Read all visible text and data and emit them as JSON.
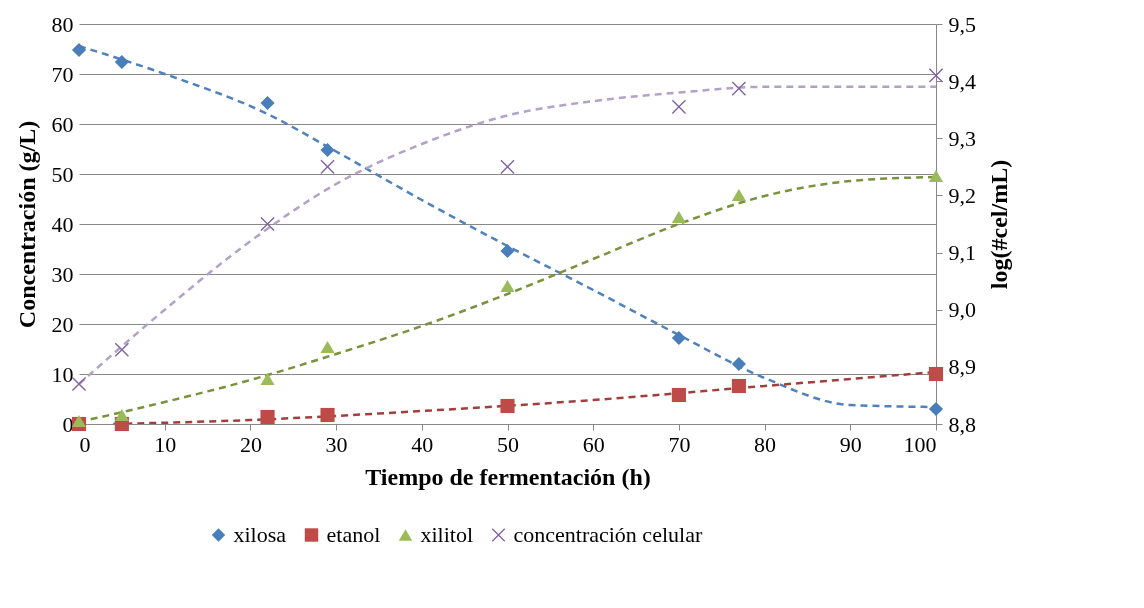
{
  "chart_data": {
    "type": "scatter",
    "xlabel": "Tiempo de fermentación (h)",
    "ylabel": "Concentración (g/L)",
    "y2label": "log(#cel/mL)",
    "xlim": [
      0,
      100
    ],
    "xticks": [
      0,
      10,
      20,
      30,
      40,
      50,
      60,
      70,
      80,
      90,
      100
    ],
    "ylim": [
      0,
      80
    ],
    "yticks": [
      0,
      10,
      20,
      30,
      40,
      50,
      60,
      70,
      80
    ],
    "y2lim": [
      8.8,
      9.5
    ],
    "y2ticks": [
      {
        "value": 8.8,
        "label": "8,8"
      },
      {
        "value": 8.9,
        "label": "8,9"
      },
      {
        "value": 9.0,
        "label": "9,0"
      },
      {
        "value": 9.1,
        "label": "9,1"
      },
      {
        "value": 9.2,
        "label": "9,2"
      },
      {
        "value": 9.3,
        "label": "9,3"
      },
      {
        "value": 9.4,
        "label": "9,4"
      },
      {
        "value": 9.5,
        "label": "9,5"
      }
    ],
    "grid": "y",
    "legend": "bottom",
    "x": [
      0,
      5,
      22,
      29,
      50,
      70,
      77,
      100
    ],
    "series": [
      {
        "type": "line",
        "color": "#4f81bd",
        "line_style": "dashed",
        "marker": "none",
        "x": [
          0,
          10,
          22,
          30,
          40,
          50,
          60,
          70,
          80,
          90,
          100
        ],
        "values": [
          75.6,
          70,
          62,
          54.5,
          44.8,
          35.6,
          26.8,
          17.8,
          9.2,
          3.8,
          3.4
        ]
      },
      {
        "type": "line",
        "color": "#a0403e",
        "line_style": "dashed",
        "marker": "none",
        "x": [
          4,
          20,
          40,
          60,
          80,
          100
        ],
        "values": [
          0,
          0.8,
          2.6,
          4.8,
          7.6,
          10.4
        ]
      },
      {
        "type": "line",
        "color": "#77933c",
        "line_style": "dashed",
        "marker": "none",
        "x": [
          0,
          10,
          20,
          30,
          40,
          50,
          60,
          70,
          80,
          90,
          100
        ],
        "values": [
          0.4,
          4.4,
          8.8,
          14,
          19.6,
          26,
          33,
          40,
          45.6,
          48.6,
          49.4
        ]
      },
      {
        "type": "line",
        "axis": "y2",
        "color": "#b3a2c7",
        "line_style": "dashed",
        "marker": "none",
        "x": [
          0,
          10,
          20,
          30,
          40,
          50,
          60,
          70,
          80,
          90,
          100
        ],
        "values": [
          8.87,
          9.0,
          9.12,
          9.22,
          9.29,
          9.34,
          9.365,
          9.38,
          9.39,
          9.39,
          9.39
        ]
      },
      {
        "name": "xilosa",
        "color": "#4a7ebb",
        "marker": "diamond",
        "values": [
          74.8,
          72.4,
          64.2,
          54.8,
          34.6,
          17.2,
          12,
          3
        ]
      },
      {
        "name": "etanol",
        "color": "#be4b48",
        "marker": "square",
        "values": [
          0,
          0,
          1.4,
          1.8,
          3.6,
          5.8,
          7.6,
          10
        ]
      },
      {
        "name": "xilitol",
        "color": "#9bbb59",
        "marker": "triangle",
        "values": [
          0.6,
          1.8,
          9,
          15.4,
          27.6,
          41.4,
          45.8,
          49.6
        ]
      },
      {
        "name": "concentración celular",
        "axis": "y2",
        "color": "#8064a2",
        "marker": "cross",
        "values": [
          8.87,
          8.93,
          9.15,
          9.25,
          9.25,
          9.355,
          9.387,
          9.41
        ]
      }
    ]
  }
}
